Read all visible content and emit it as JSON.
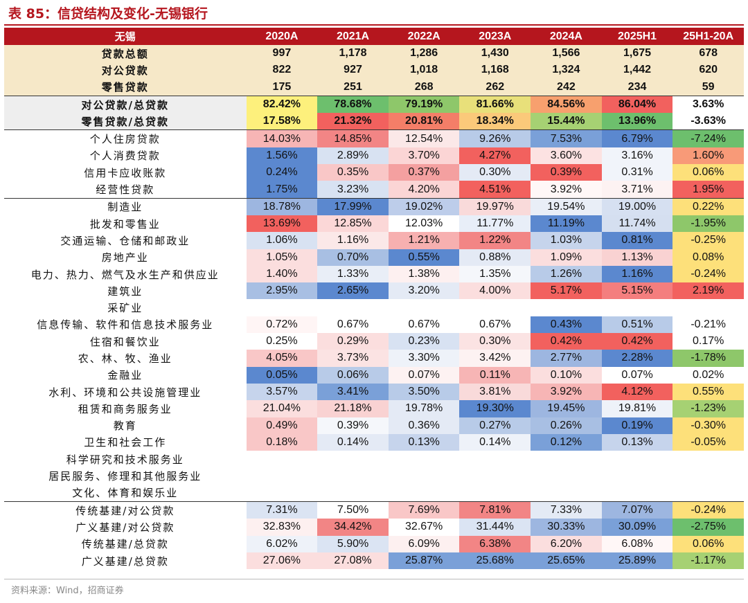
{
  "title": "表 85：信贷结构及变化-无锡银行",
  "source": "资料来源：Wind，招商证券",
  "colors": {
    "brand_red": "#b5161e",
    "header_band": "#f6e8c8"
  },
  "header": [
    "无锡",
    "2020A",
    "2021A",
    "2022A",
    "2023A",
    "2024A",
    "2025H1",
    "25H1-20A"
  ],
  "rows": [
    {
      "label": "贷款总额",
      "values": [
        "997",
        "1,178",
        "1,286",
        "1,430",
        "1,566",
        "1,675",
        "678"
      ],
      "bg": [
        "",
        "",
        "",
        "",
        "",
        "",
        ""
      ]
    },
    {
      "label": "对公贷款",
      "values": [
        "822",
        "927",
        "1,018",
        "1,168",
        "1,324",
        "1,442",
        "620"
      ],
      "bg": [
        "",
        "",
        "",
        "",
        "",
        "",
        ""
      ]
    },
    {
      "label": "零售贷款",
      "values": [
        "175",
        "251",
        "268",
        "262",
        "242",
        "234",
        "59"
      ],
      "bg": [
        "",
        "",
        "",
        "",
        "",
        "",
        ""
      ]
    },
    {
      "label": "对公贷款/总贷款",
      "values": [
        "82.42%",
        "78.68%",
        "79.19%",
        "81.66%",
        "84.56%",
        "86.04%",
        "3.63%"
      ],
      "bg": [
        "#fdf07c",
        "#6dbf6d",
        "#8ec76a",
        "#e8e07a",
        "#f7a06e",
        "#f2615e",
        "#ffffff"
      ]
    },
    {
      "label": "零售贷款/总贷款",
      "values": [
        "17.58%",
        "21.32%",
        "20.81%",
        "18.34%",
        "15.44%",
        "13.96%",
        "-3.63%"
      ],
      "bg": [
        "#fdf07c",
        "#f2615e",
        "#f47e68",
        "#fbc97a",
        "#a6d173",
        "#6dbf6d",
        "#ffffff"
      ]
    },
    {
      "label": "个人住房贷款",
      "values": [
        "14.03%",
        "14.85%",
        "12.54%",
        "9.26%",
        "7.53%",
        "6.79%",
        "-7.24%"
      ],
      "bg": [
        "#f7b5b5",
        "#f28585",
        "#fbe8e8",
        "#b8cbe8",
        "#7aa0d8",
        "#5b88cf",
        "#6dbf6d"
      ]
    },
    {
      "label": "个人消费贷款",
      "values": [
        "1.56%",
        "2.89%",
        "3.70%",
        "4.27%",
        "3.60%",
        "3.16%",
        "1.60%"
      ],
      "bg": [
        "#5b88cf",
        "#d8e2f2",
        "#fbd5d5",
        "#f2615e",
        "#fce2e2",
        "#f1f4fa",
        "#f89a78"
      ]
    },
    {
      "label": "信用卡应收账款",
      "values": [
        "0.24%",
        "0.35%",
        "0.37%",
        "0.30%",
        "0.39%",
        "0.31%",
        "0.06%"
      ],
      "bg": [
        "#5b88cf",
        "#f9c7c7",
        "#f4a0a0",
        "#e4eaf5",
        "#f2615e",
        "#f1f4fa",
        "#fde07a"
      ]
    },
    {
      "label": "经营性贷款",
      "values": [
        "1.75%",
        "3.23%",
        "4.20%",
        "4.51%",
        "3.92%",
        "3.71%",
        "1.95%"
      ],
      "bg": [
        "#5b88cf",
        "#d8e2f2",
        "#fbd5d5",
        "#f2615e",
        "#fff7f7",
        "#fdf2f2",
        "#f2615e"
      ]
    },
    {
      "label": "制造业",
      "values": [
        "18.78%",
        "17.99%",
        "19.02%",
        "19.97%",
        "19.54%",
        "19.00%",
        "0.22%"
      ],
      "bg": [
        "#9db6e0",
        "#5b88cf",
        "#bdcdea",
        "#f9dada",
        "#e9eef7",
        "#d6e0f1",
        "#fde07a"
      ]
    },
    {
      "label": "批发和零售业",
      "values": [
        "13.69%",
        "12.85%",
        "12.03%",
        "11.77%",
        "11.19%",
        "11.74%",
        "-1.95%"
      ],
      "bg": [
        "#f2615e",
        "#fbd7d7",
        "#ffffff",
        "#e8eef8",
        "#5b88cf",
        "#d5dff0",
        "#8ec76a"
      ]
    },
    {
      "label": "交通运输、仓储和邮政业",
      "values": [
        "1.06%",
        "1.16%",
        "1.21%",
        "1.22%",
        "1.03%",
        "0.81%",
        "-0.25%"
      ],
      "bg": [
        "#d8e2f2",
        "#fbe8e8",
        "#f7b0b0",
        "#f28585",
        "#c6d4ec",
        "#5b88cf",
        "#fde07a"
      ]
    },
    {
      "label": "房地产业",
      "values": [
        "1.05%",
        "0.70%",
        "0.55%",
        "0.88%",
        "1.09%",
        "1.13%",
        "0.08%"
      ],
      "bg": [
        "#fbdede",
        "#a8bfe3",
        "#5b88cf",
        "#e4eaf5",
        "#fbdede",
        "#f9d2d2",
        "#fde07a"
      ]
    },
    {
      "label": "电力、热力、燃气及水生产和供应业",
      "values": [
        "1.40%",
        "1.33%",
        "1.38%",
        "1.35%",
        "1.26%",
        "1.16%",
        "-0.24%"
      ],
      "bg": [
        "#fbdede",
        "#e9eef7",
        "#fdf0f0",
        "#f5f7fb",
        "#b8cbe8",
        "#5b88cf",
        "#fde07a"
      ]
    },
    {
      "label": "建筑业",
      "values": [
        "2.95%",
        "2.65%",
        "3.20%",
        "4.00%",
        "5.17%",
        "5.15%",
        "2.19%"
      ],
      "bg": [
        "#a8bfe3",
        "#5b88cf",
        "#e4eaf5",
        "#fbdede",
        "#f2615e",
        "#f47e7e",
        "#f2615e"
      ]
    },
    {
      "label": "采矿业",
      "values": [
        "",
        "",
        "",
        "",
        "",
        "",
        ""
      ],
      "bg": [
        "",
        "",
        "",
        "",
        "",
        "",
        ""
      ]
    },
    {
      "label": "信息传输、软件和信息技术服务业",
      "values": [
        "0.72%",
        "0.67%",
        "0.67%",
        "0.67%",
        "0.43%",
        "0.51%",
        "-0.21%"
      ],
      "bg": [
        "#fff5f5",
        "#ffffff",
        "#ffffff",
        "#ffffff",
        "#5b88cf",
        "#b8cbe8",
        "#ffffff"
      ]
    },
    {
      "label": "住宿和餐饮业",
      "values": [
        "0.25%",
        "0.29%",
        "0.23%",
        "0.30%",
        "0.42%",
        "0.42%",
        "0.17%"
      ],
      "bg": [
        "#ffffff",
        "#fbdede",
        "#d8e2f2",
        "#fbe3e3",
        "#f2615e",
        "#f2615e",
        "#ffffff"
      ]
    },
    {
      "label": "农、林、牧、渔业",
      "values": [
        "4.05%",
        "3.73%",
        "3.30%",
        "3.42%",
        "2.77%",
        "2.28%",
        "-1.78%"
      ],
      "bg": [
        "#f9c7c7",
        "#fbe3e3",
        "#eef2f9",
        "#fdf2f2",
        "#9db6e0",
        "#5b88cf",
        "#8ec76a"
      ]
    },
    {
      "label": "金融业",
      "values": [
        "0.05%",
        "0.06%",
        "0.07%",
        "0.11%",
        "0.10%",
        "0.07%",
        "0.02%"
      ],
      "bg": [
        "#5b88cf",
        "#b8cbe8",
        "#fdf2f2",
        "#f7b5b5",
        "#fbdede",
        "#ffffff",
        "#ffffff"
      ]
    },
    {
      "label": "水利、环境和公共设施管理业",
      "values": [
        "3.57%",
        "3.41%",
        "3.50%",
        "3.81%",
        "3.92%",
        "4.12%",
        "0.55%"
      ],
      "bg": [
        "#c6d4ec",
        "#7aa0d8",
        "#b8cbe8",
        "#f9dada",
        "#f7b5b5",
        "#f2615e",
        "#fde07a"
      ]
    },
    {
      "label": "租赁和商务服务业",
      "values": [
        "21.04%",
        "21.18%",
        "19.78%",
        "19.30%",
        "19.45%",
        "19.81%",
        "-1.23%"
      ],
      "bg": [
        "#fbdede",
        "#f9d2d2",
        "#e4eaf5",
        "#5b88cf",
        "#9db6e0",
        "#eef2f9",
        "#a6d173"
      ]
    },
    {
      "label": "教育",
      "values": [
        "0.49%",
        "0.39%",
        "0.36%",
        "0.27%",
        "0.26%",
        "0.19%",
        "-0.30%"
      ],
      "bg": [
        "#f9c7c7",
        "#f5f7fb",
        "#e4eaf5",
        "#b8cbe8",
        "#a8bfe3",
        "#5b88cf",
        "#fde07a"
      ]
    },
    {
      "label": "卫生和社会工作",
      "values": [
        "0.18%",
        "0.14%",
        "0.13%",
        "0.14%",
        "0.12%",
        "0.13%",
        "-0.05%"
      ],
      "bg": [
        "#f9c7c7",
        "#e4eaf5",
        "#c6d4ec",
        "#eef2f9",
        "#7aa0d8",
        "#c6d4ec",
        "#fde07a"
      ]
    },
    {
      "label": "科学研究和技术服务业",
      "values": [
        "",
        "",
        "",
        "",
        "",
        "",
        ""
      ],
      "bg": [
        "",
        "",
        "",
        "",
        "",
        "",
        ""
      ]
    },
    {
      "label": "居民服务、修理和其他服务业",
      "values": [
        "",
        "",
        "",
        "",
        "",
        "",
        ""
      ],
      "bg": [
        "",
        "",
        "",
        "",
        "",
        "",
        ""
      ]
    },
    {
      "label": "文化、体育和娱乐业",
      "values": [
        "",
        "",
        "",
        "",
        "",
        "",
        ""
      ],
      "bg": [
        "",
        "",
        "",
        "",
        "",
        "",
        ""
      ]
    },
    {
      "label": "传统基建/对公贷款",
      "values": [
        "7.31%",
        "7.50%",
        "7.69%",
        "7.81%",
        "7.33%",
        "7.07%",
        "-0.24%"
      ],
      "bg": [
        "#dbe4f3",
        "#ffffff",
        "#f9c7c7",
        "#f28585",
        "#e4eaf5",
        "#9db6e0",
        "#fde07a"
      ]
    },
    {
      "label": "广义基建/对公贷款",
      "values": [
        "32.83%",
        "34.42%",
        "32.67%",
        "31.44%",
        "30.33%",
        "30.09%",
        "-2.75%"
      ],
      "bg": [
        "#fdf0f0",
        "#f28585",
        "#ffffff",
        "#dbe4f3",
        "#9db6e0",
        "#7aa0d8",
        "#6dbf6d"
      ]
    },
    {
      "label": "传统基建/总贷款",
      "values": [
        "6.02%",
        "5.90%",
        "6.09%",
        "6.38%",
        "6.20%",
        "6.08%",
        "0.06%"
      ],
      "bg": [
        "#eef2f9",
        "#dbe4f3",
        "#fdf0f0",
        "#f28585",
        "#fbdede",
        "#fff7f7",
        "#fde07a"
      ]
    },
    {
      "label": "广义基建/总贷款",
      "values": [
        "27.06%",
        "27.08%",
        "25.87%",
        "25.68%",
        "25.65%",
        "25.89%",
        "-1.17%"
      ],
      "bg": [
        "#fbdede",
        "#fbdede",
        "#7aa0d8",
        "#7aa0d8",
        "#7aa0d8",
        "#7aa0d8",
        "#a6d173"
      ]
    }
  ]
}
